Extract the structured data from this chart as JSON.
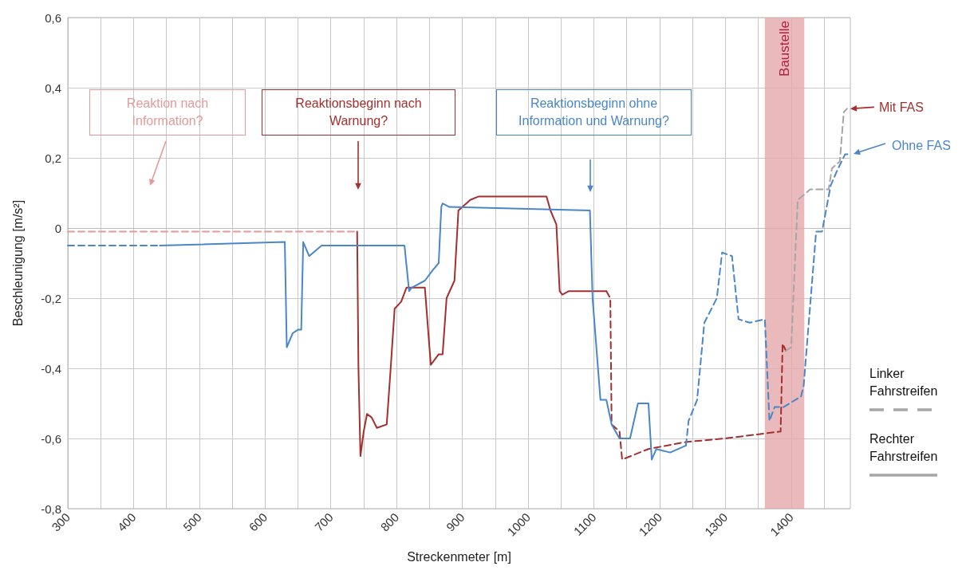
{
  "chart_data": {
    "type": "line",
    "xlabel": "Streckenmeter [m]",
    "ylabel": "Beschleunigung [m/s²]",
    "xlim": [
      300,
      1490
    ],
    "xticks": [
      300,
      {
        "value": 350,
        "label": null
      },
      400,
      {
        "value": 450,
        "label": null
      },
      500,
      {
        "value": 550,
        "label": null
      },
      600,
      {
        "value": 650,
        "label": null
      },
      700,
      {
        "value": 750,
        "label": null
      },
      800,
      {
        "value": 850,
        "label": null
      },
      900,
      {
        "value": 950,
        "label": null
      },
      1000,
      {
        "value": 1050,
        "label": null
      },
      1100,
      {
        "value": 1150,
        "label": null
      },
      1200,
      {
        "value": 1250,
        "label": null
      },
      1300,
      {
        "value": 1350,
        "label": null
      },
      1400,
      {
        "value": 1450,
        "label": null
      }
    ],
    "ylim": [
      -0.8,
      0.6
    ],
    "yticks": [
      {
        "value": -0.8,
        "label": "-0,8"
      },
      {
        "value": -0.6,
        "label": "-0,6"
      },
      {
        "value": -0.4,
        "label": "-0,4"
      },
      {
        "value": -0.2,
        "label": "-0,2"
      },
      0,
      {
        "value": 0.2,
        "label": "0,2"
      },
      {
        "value": 0.4,
        "label": "0,4"
      },
      {
        "value": 0.6,
        "label": "0,6"
      }
    ],
    "grid": true,
    "marker": "none",
    "series": [
      {
        "color": "#e59a9a",
        "line_style": "dashed",
        "x": [
          300,
          400,
          500,
          600,
          700,
          740
        ],
        "values": [
          -0.01,
          -0.01,
          -0.01,
          -0.01,
          -0.01,
          -0.01
        ]
      },
      {
        "color": "#a3302f",
        "line_style": "solid",
        "x": [
          740,
          742,
          745,
          750,
          755,
          762,
          770,
          785,
          791,
          797,
          807,
          815,
          843,
          852,
          864,
          870,
          876,
          888,
          894,
          912,
          925,
          1028,
          1034,
          1043,
          1048,
          1052,
          1062,
          1080,
          1100,
          1119
        ],
        "values": [
          -0.01,
          -0.4,
          -0.65,
          -0.58,
          -0.53,
          -0.54,
          -0.57,
          -0.56,
          -0.4,
          -0.23,
          -0.21,
          -0.17,
          -0.17,
          -0.39,
          -0.36,
          -0.36,
          -0.2,
          -0.15,
          0.05,
          0.08,
          0.09,
          0.09,
          0.05,
          0.01,
          -0.18,
          -0.19,
          -0.18,
          -0.18,
          -0.18,
          -0.18
        ]
      },
      {
        "color": "#a3302f",
        "line_style": "dashed",
        "x": [
          1119,
          1125,
          1127,
          1139,
          1143,
          1183,
          1240,
          1299,
          1384,
          1387,
          1392
        ],
        "values": [
          -0.18,
          -0.2,
          -0.56,
          -0.58,
          -0.66,
          -0.63,
          -0.61,
          -0.6,
          -0.58,
          -0.33,
          -0.35
        ]
      },
      {
        "color": "#a6a6a6",
        "line_style": "dashed",
        "x": [
          1392,
          1400,
          1410,
          1429,
          1457,
          1462,
          1474,
          1480,
          1485
        ],
        "values": [
          -0.35,
          -0.34,
          0.08,
          0.11,
          0.11,
          0.17,
          0.19,
          0.33,
          0.34
        ]
      },
      {
        "color": "#4a86c8",
        "line_style": "dashed",
        "x": [
          300,
          340,
          400,
          440
        ],
        "values": [
          -0.05,
          -0.05,
          -0.05,
          -0.05
        ]
      },
      {
        "color": "#4a86c8",
        "line_style": "solid",
        "x": [
          440,
          630,
          633,
          642,
          650,
          655,
          658,
          667,
          686,
          812,
          819,
          823,
          843,
          855,
          864,
          868,
          870,
          880,
          1094,
          1098,
          1110,
          1119,
          1127,
          1139,
          1155,
          1167,
          1183,
          1188,
          1195,
          1216,
          1240
        ],
        "values": [
          -0.05,
          -0.04,
          -0.34,
          -0.3,
          -0.29,
          -0.29,
          -0.04,
          -0.08,
          -0.05,
          -0.05,
          -0.18,
          -0.17,
          -0.15,
          -0.12,
          -0.1,
          0.06,
          0.07,
          0.06,
          0.05,
          -0.2,
          -0.49,
          -0.49,
          -0.56,
          -0.6,
          -0.6,
          -0.5,
          -0.5,
          -0.66,
          -0.63,
          -0.64,
          -0.62
        ]
      },
      {
        "color": "#4a86c8",
        "line_style": "dashed",
        "x": [
          1240,
          1244,
          1257,
          1268,
          1287,
          1295,
          1310,
          1320,
          1337,
          1360,
          1367,
          1375,
          1389,
          1415,
          1419,
          1438,
          1447,
          1460,
          1469,
          1482,
          1490
        ],
        "values": [
          -0.62,
          -0.55,
          -0.49,
          -0.27,
          -0.2,
          -0.07,
          -0.08,
          -0.26,
          -0.27,
          -0.26,
          -0.55,
          -0.51,
          -0.51,
          -0.48,
          -0.45,
          -0.01,
          -0.01,
          0.12,
          0.16,
          0.21,
          0.21
        ]
      }
    ],
    "bands": [
      {
        "axis": "x",
        "from": 1360,
        "to": 1420,
        "label": "Baustelle",
        "color": "#e3a7aa"
      }
    ],
    "annotations": [
      "Reaktion nach Information?",
      "Reaktionsbeginn nach Warnung?",
      "Reaktionsbeginn ohne Information und Warnung?",
      {
        "text": "Mit FAS",
        "x": 1485,
        "y": 0.34
      },
      "Ohne FAS",
      "Linker Fahrstreifen",
      "Rechter Fahrstreifen"
    ]
  }
}
